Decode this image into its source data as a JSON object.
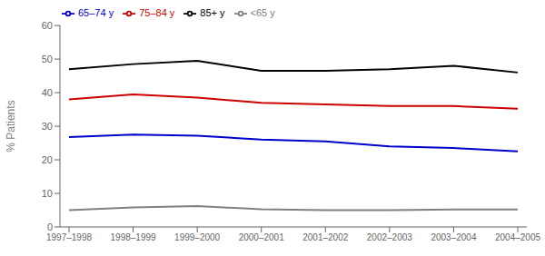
{
  "chart_data": {
    "type": "line",
    "categories": [
      "1997–1998",
      "1998–1999",
      "1999–2000",
      "2000–2001",
      "2001–2002",
      "2002–2003",
      "2003–2004",
      "2004–2005"
    ],
    "series": [
      {
        "name": "<65 y",
        "color": "#808080",
        "values": [
          5.0,
          5.8,
          6.2,
          5.3,
          5.0,
          5.0,
          5.2,
          5.2
        ]
      },
      {
        "name": "65–74 y",
        "color": "#0000cc",
        "values": [
          26.8,
          27.5,
          27.2,
          26.0,
          25.5,
          24.0,
          23.5,
          22.5
        ]
      },
      {
        "name": "75–84 y",
        "color": "#cc0000",
        "values": [
          38.0,
          39.5,
          38.5,
          37.0,
          36.5,
          36.0,
          36.0,
          35.2
        ]
      },
      {
        "name": "85+ y",
        "color": "#000000",
        "values": [
          47.0,
          48.5,
          49.5,
          46.5,
          46.5,
          47.0,
          48.0,
          46.0
        ]
      }
    ],
    "ylabel": "% Patients",
    "ylim": [
      0,
      60
    ],
    "yticks": [
      0,
      10,
      20,
      30,
      40,
      50,
      60
    ],
    "grid": false,
    "legend": "upper left"
  }
}
